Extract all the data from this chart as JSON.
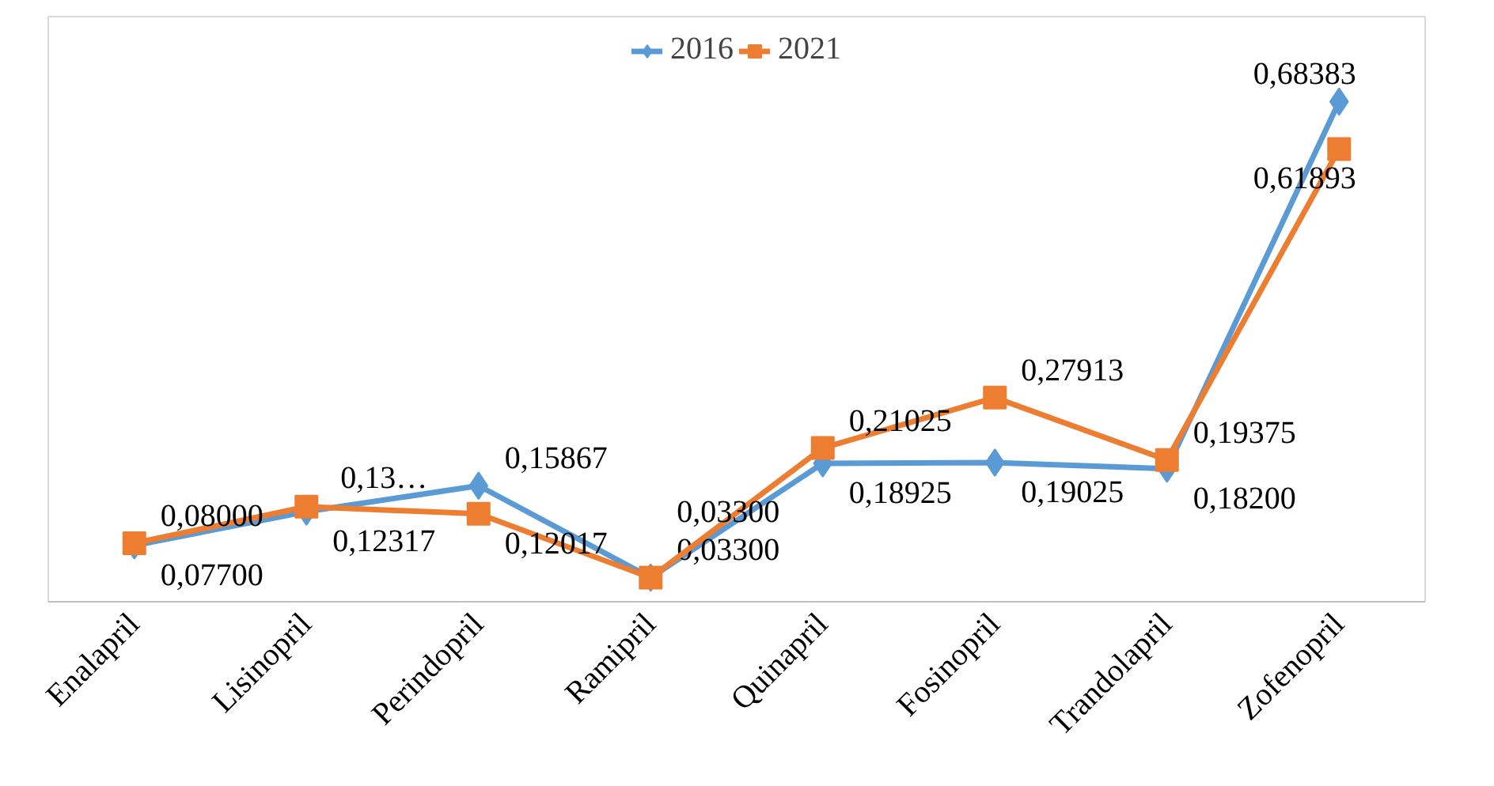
{
  "chart_data": {
    "type": "line",
    "categories": [
      "Enalapril",
      "Lisinopril",
      "Perindopril",
      "Ramipril",
      "Quinapril",
      "Fosinopril",
      "Trandolapril",
      "Zofenopril"
    ],
    "series": [
      {
        "name": "2016",
        "color": "#5b9bd5",
        "marker": "diamond",
        "values": [
          0.077,
          0.12317,
          0.15867,
          0.033,
          0.18925,
          0.19025,
          0.182,
          0.68383
        ],
        "value_labels": [
          "0,07700",
          "0,12317",
          "0,15867",
          "0,03300",
          "0,18925",
          "0,19025",
          "0,18200",
          "0,68383"
        ]
      },
      {
        "name": "2021",
        "color": "#ed7d31",
        "marker": "square",
        "values": [
          0.08,
          0.13,
          0.12017,
          0.033,
          0.21025,
          0.27913,
          0.19375,
          0.61893
        ],
        "value_labels": [
          "0,08000",
          "0,13…",
          "0,12017",
          "0,03300",
          "0,21025",
          "0,27913",
          "0,19375",
          "0,61893"
        ]
      }
    ],
    "ylim": [
      0,
      0.8
    ],
    "tick_labels": "x",
    "grid": false,
    "legend": "top",
    "line_style": "solid"
  }
}
